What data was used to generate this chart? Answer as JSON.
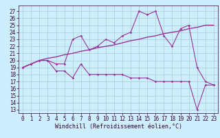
{
  "xlabel": "Windchill (Refroidissement éolien,°C)",
  "background_color": "#cceeff",
  "grid_color": "#aacccc",
  "line_color": "#993399",
  "x_ticks": [
    0,
    1,
    2,
    3,
    4,
    5,
    6,
    7,
    8,
    9,
    10,
    11,
    12,
    13,
    14,
    15,
    16,
    17,
    18,
    19,
    20,
    21,
    22,
    23
  ],
  "y_ticks": [
    13,
    14,
    15,
    16,
    17,
    18,
    19,
    20,
    21,
    22,
    23,
    24,
    25,
    26,
    27
  ],
  "xlim": [
    -0.5,
    23.5
  ],
  "ylim": [
    12.5,
    27.8
  ],
  "series1_x": [
    0,
    1,
    2,
    3,
    4,
    5,
    6,
    7,
    8,
    9,
    10,
    11,
    12,
    13,
    14,
    15,
    16,
    17,
    18,
    19,
    20,
    21,
    22,
    23
  ],
  "series1_y": [
    19.0,
    19.5,
    20.0,
    20.0,
    18.5,
    18.5,
    17.5,
    19.5,
    18.0,
    18.0,
    18.0,
    18.0,
    18.0,
    17.5,
    17.5,
    17.5,
    17.0,
    17.0,
    17.0,
    17.0,
    17.0,
    13.0,
    16.5,
    16.5
  ],
  "series2_x": [
    0,
    1,
    2,
    3,
    4,
    5,
    6,
    7,
    8,
    9,
    10,
    11,
    12,
    13,
    14,
    15,
    16,
    17,
    18,
    19,
    20,
    21,
    22,
    23
  ],
  "series2_y": [
    19.0,
    19.5,
    20.0,
    20.0,
    19.5,
    19.5,
    23.0,
    23.5,
    21.5,
    22.0,
    23.0,
    22.5,
    23.5,
    24.0,
    27.0,
    26.5,
    27.0,
    23.5,
    22.0,
    24.5,
    25.0,
    19.0,
    17.0,
    16.5
  ],
  "series3_x": [
    0,
    1,
    2,
    3,
    4,
    5,
    6,
    7,
    8,
    9,
    10,
    11,
    12,
    13,
    14,
    15,
    16,
    17,
    18,
    19,
    20,
    21,
    22,
    23
  ],
  "series3_y": [
    19.0,
    19.5,
    20.0,
    20.3,
    20.5,
    20.8,
    21.0,
    21.3,
    21.5,
    21.8,
    22.0,
    22.2,
    22.5,
    22.8,
    23.0,
    23.3,
    23.5,
    23.8,
    24.0,
    24.2,
    24.5,
    24.7,
    25.0,
    25.0
  ],
  "tick_fontsize": 5.5,
  "xlabel_fontsize": 6.0
}
